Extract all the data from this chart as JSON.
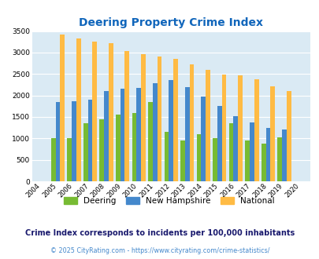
{
  "title": "Deering Property Crime Index",
  "years": [
    2004,
    2005,
    2006,
    2007,
    2008,
    2009,
    2010,
    2011,
    2012,
    2013,
    2014,
    2015,
    2016,
    2017,
    2018,
    2019,
    2020
  ],
  "deering": [
    0,
    1000,
    1000,
    1350,
    1450,
    1550,
    1600,
    1850,
    1150,
    960,
    1100,
    1000,
    1350,
    950,
    880,
    1020,
    0
  ],
  "new_hampshire": [
    0,
    1840,
    1860,
    1900,
    2100,
    2150,
    2180,
    2290,
    2350,
    2190,
    1970,
    1760,
    1510,
    1370,
    1250,
    1210,
    0
  ],
  "national": [
    0,
    3420,
    3330,
    3260,
    3210,
    3040,
    2960,
    2910,
    2860,
    2730,
    2590,
    2490,
    2470,
    2380,
    2210,
    2110,
    0
  ],
  "deering_color": "#77bb33",
  "nh_color": "#4488cc",
  "national_color": "#ffbb44",
  "bg_color": "#daeaf4",
  "ylim": [
    0,
    3500
  ],
  "yticks": [
    0,
    500,
    1000,
    1500,
    2000,
    2500,
    3000,
    3500
  ],
  "subtitle": "Crime Index corresponds to incidents per 100,000 inhabitants",
  "footer": "© 2025 CityRating.com - https://www.cityrating.com/crime-statistics/",
  "title_color": "#1166bb",
  "subtitle_color": "#1a1a6e",
  "footer_color": "#4488cc"
}
